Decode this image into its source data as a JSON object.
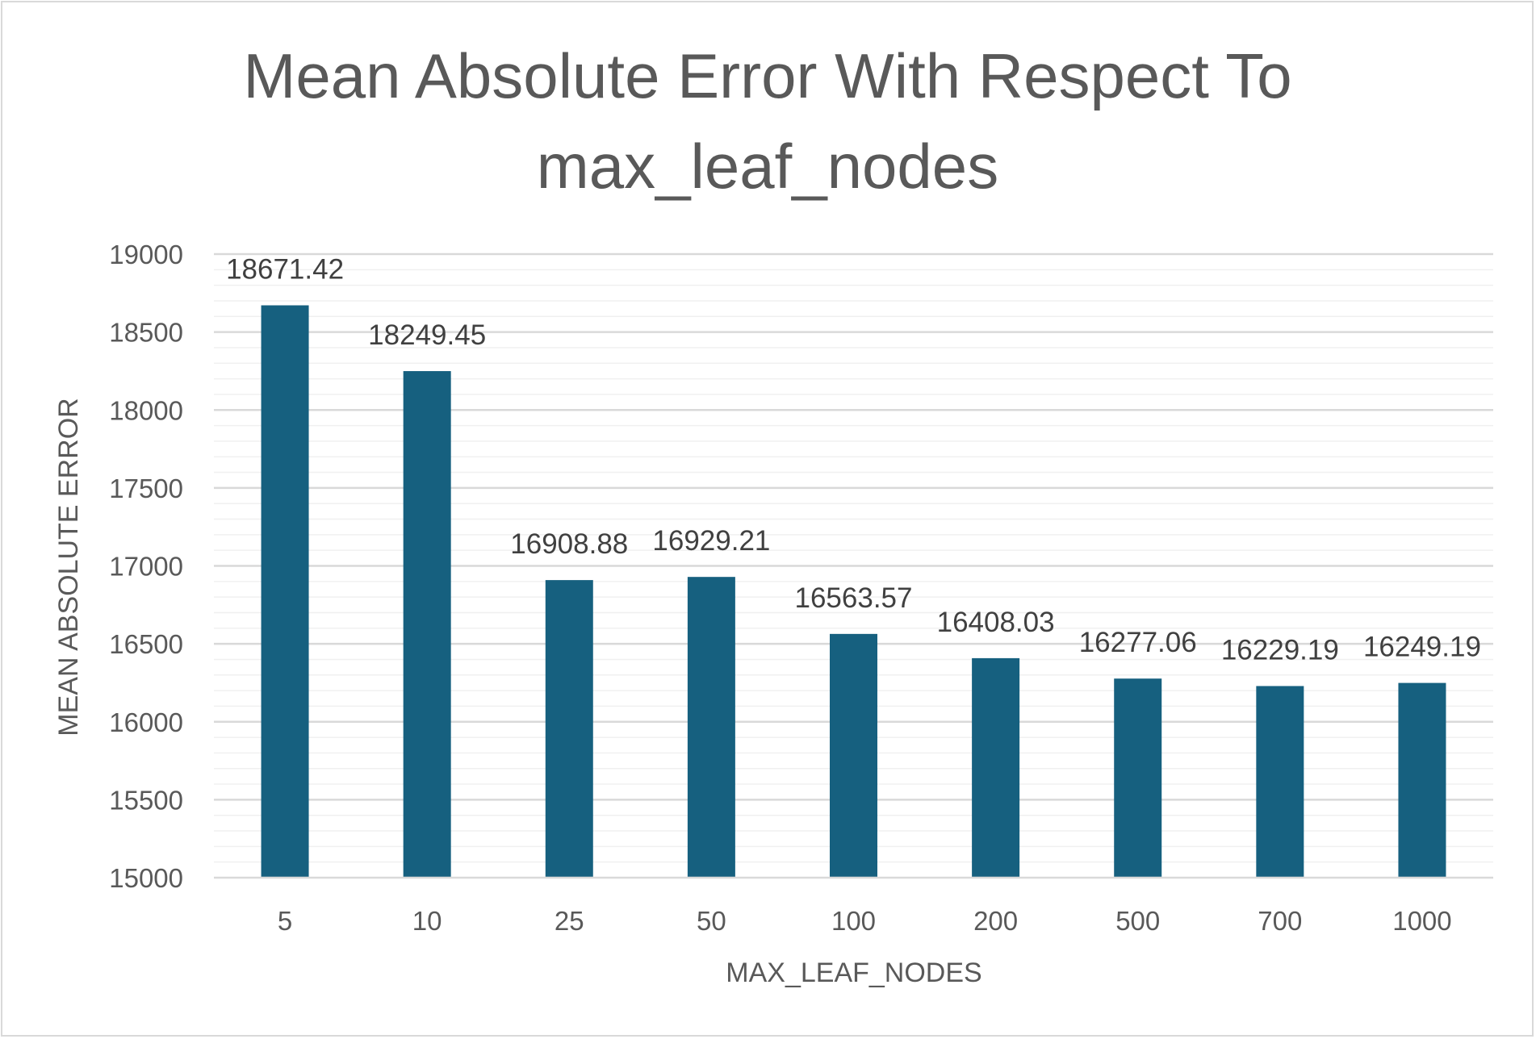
{
  "chart_data": {
    "type": "bar",
    "title_lines": [
      "Mean Absolute Error With Respect To",
      "max_leaf_nodes"
    ],
    "xlabel": "MAX_LEAF_NODES",
    "ylabel": "MEAN ABSOLUTE ERROR",
    "categories": [
      "5",
      "10",
      "25",
      "50",
      "100",
      "200",
      "500",
      "700",
      "1000"
    ],
    "values": [
      18671.42,
      18249.45,
      16908.88,
      16929.21,
      16563.57,
      16408.03,
      16277.06,
      16229.19,
      16249.19
    ],
    "data_labels": [
      "18671.42",
      "18249.45",
      "16908.88",
      "16929.21",
      "16563.57",
      "16408.03",
      "16277.06",
      "16229.19",
      "16249.19"
    ],
    "ylim": [
      15000,
      19000
    ],
    "y_major_step": 500,
    "y_minor_step": 100,
    "y_ticks": [
      "15000",
      "15500",
      "16000",
      "16500",
      "17000",
      "17500",
      "18000",
      "18500",
      "19000"
    ],
    "bar_color": "#16607f",
    "major_grid_color": "#d9d9d9",
    "minor_grid_color": "#f0f0f0",
    "grid": true,
    "legend": "none"
  }
}
